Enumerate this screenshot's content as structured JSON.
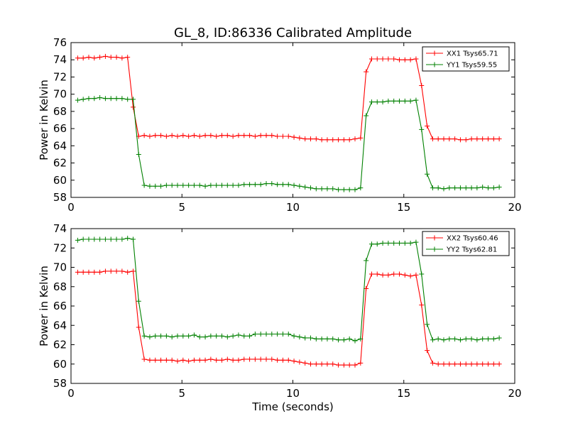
{
  "chart_data": [
    {
      "type": "line",
      "title": "GL_8, ID:86336 Calibrated Amplitude",
      "xlabel": "",
      "ylabel": "Power in Kelvin",
      "xlim": [
        0,
        20
      ],
      "ylim": [
        58,
        76
      ],
      "xticks": [
        0,
        5,
        10,
        15,
        20
      ],
      "yticks": [
        58,
        60,
        62,
        64,
        66,
        68,
        70,
        72,
        74,
        76
      ],
      "grid": false,
      "legend_position": "top-right",
      "x": [
        0.3,
        0.55,
        0.8,
        1.05,
        1.3,
        1.55,
        1.8,
        2.05,
        2.3,
        2.55,
        2.8,
        3.05,
        3.3,
        3.55,
        3.8,
        4.05,
        4.3,
        4.55,
        4.8,
        5.05,
        5.3,
        5.55,
        5.8,
        6.05,
        6.3,
        6.55,
        6.8,
        7.05,
        7.3,
        7.55,
        7.8,
        8.05,
        8.3,
        8.55,
        8.8,
        9.05,
        9.3,
        9.55,
        9.8,
        10.05,
        10.3,
        10.55,
        10.8,
        11.05,
        11.3,
        11.55,
        11.8,
        12.05,
        12.3,
        12.55,
        12.8,
        13.05,
        13.3,
        13.55,
        13.8,
        14.05,
        14.3,
        14.55,
        14.8,
        15.05,
        15.3,
        15.55,
        15.8,
        16.05,
        16.3,
        16.55,
        16.8,
        17.05,
        17.3,
        17.55,
        17.8,
        18.05,
        18.3,
        18.55,
        18.8,
        19.05,
        19.3
      ],
      "series": [
        {
          "name": "XX1 Tsys65.71",
          "color": "#ff0000",
          "values": [
            74.2,
            74.2,
            74.3,
            74.2,
            74.3,
            74.4,
            74.3,
            74.3,
            74.2,
            74.3,
            68.5,
            65.1,
            65.2,
            65.1,
            65.2,
            65.2,
            65.1,
            65.2,
            65.1,
            65.2,
            65.1,
            65.2,
            65.1,
            65.2,
            65.2,
            65.1,
            65.2,
            65.2,
            65.1,
            65.2,
            65.2,
            65.2,
            65.1,
            65.2,
            65.2,
            65.2,
            65.1,
            65.1,
            65.1,
            65.0,
            64.9,
            64.8,
            64.8,
            64.8,
            64.7,
            64.7,
            64.7,
            64.7,
            64.7,
            64.7,
            64.8,
            64.9,
            72.6,
            74.1,
            74.1,
            74.1,
            74.1,
            74.1,
            74.0,
            74.0,
            74.0,
            74.1,
            71.0,
            66.3,
            64.8,
            64.8,
            64.8,
            64.8,
            64.8,
            64.7,
            64.7,
            64.8,
            64.8,
            64.8,
            64.8,
            64.8,
            64.8
          ]
        },
        {
          "name": "YY1 Tsys59.55",
          "color": "#008000",
          "values": [
            69.3,
            69.4,
            69.5,
            69.5,
            69.6,
            69.5,
            69.5,
            69.5,
            69.5,
            69.4,
            69.4,
            63.0,
            59.4,
            59.3,
            59.3,
            59.3,
            59.4,
            59.4,
            59.4,
            59.4,
            59.4,
            59.4,
            59.4,
            59.3,
            59.4,
            59.4,
            59.4,
            59.4,
            59.4,
            59.4,
            59.5,
            59.5,
            59.5,
            59.5,
            59.6,
            59.6,
            59.5,
            59.5,
            59.5,
            59.4,
            59.3,
            59.2,
            59.1,
            59.0,
            59.0,
            59.0,
            59.0,
            58.9,
            58.9,
            58.9,
            58.9,
            59.1,
            67.5,
            69.1,
            69.1,
            69.1,
            69.2,
            69.2,
            69.2,
            69.2,
            69.2,
            69.3,
            65.9,
            60.7,
            59.1,
            59.1,
            59.0,
            59.1,
            59.1,
            59.1,
            59.1,
            59.1,
            59.1,
            59.2,
            59.1,
            59.1,
            59.2
          ]
        }
      ]
    },
    {
      "type": "line",
      "title": "",
      "xlabel": "Time (seconds)",
      "ylabel": "Power in Kelvin",
      "xlim": [
        0,
        20
      ],
      "ylim": [
        58,
        74
      ],
      "xticks": [
        0,
        5,
        10,
        15,
        20
      ],
      "yticks": [
        58,
        60,
        62,
        64,
        66,
        68,
        70,
        72,
        74
      ],
      "grid": false,
      "legend_position": "top-right",
      "x": [
        0.3,
        0.55,
        0.8,
        1.05,
        1.3,
        1.55,
        1.8,
        2.05,
        2.3,
        2.55,
        2.8,
        3.05,
        3.3,
        3.55,
        3.8,
        4.05,
        4.3,
        4.55,
        4.8,
        5.05,
        5.3,
        5.55,
        5.8,
        6.05,
        6.3,
        6.55,
        6.8,
        7.05,
        7.3,
        7.55,
        7.8,
        8.05,
        8.3,
        8.55,
        8.8,
        9.05,
        9.3,
        9.55,
        9.8,
        10.05,
        10.3,
        10.55,
        10.8,
        11.05,
        11.3,
        11.55,
        11.8,
        12.05,
        12.3,
        12.55,
        12.8,
        13.05,
        13.3,
        13.55,
        13.8,
        14.05,
        14.3,
        14.55,
        14.8,
        15.05,
        15.3,
        15.55,
        15.8,
        16.05,
        16.3,
        16.55,
        16.8,
        17.05,
        17.3,
        17.55,
        17.8,
        18.05,
        18.3,
        18.55,
        18.8,
        19.05,
        19.3
      ],
      "series": [
        {
          "name": "XX2 Tsys60.46",
          "color": "#ff0000",
          "values": [
            69.5,
            69.5,
            69.5,
            69.5,
            69.5,
            69.6,
            69.6,
            69.6,
            69.6,
            69.5,
            69.6,
            63.8,
            60.5,
            60.4,
            60.4,
            60.4,
            60.4,
            60.4,
            60.3,
            60.4,
            60.3,
            60.4,
            60.4,
            60.4,
            60.5,
            60.4,
            60.4,
            60.5,
            60.4,
            60.4,
            60.5,
            60.5,
            60.5,
            60.5,
            60.5,
            60.5,
            60.4,
            60.4,
            60.4,
            60.3,
            60.2,
            60.1,
            60.0,
            60.0,
            60.0,
            60.0,
            60.0,
            59.9,
            59.9,
            59.9,
            59.9,
            60.1,
            67.8,
            69.3,
            69.3,
            69.2,
            69.2,
            69.3,
            69.3,
            69.2,
            69.1,
            69.2,
            66.1,
            61.4,
            60.1,
            60.0,
            60.0,
            60.0,
            60.0,
            60.0,
            60.0,
            60.0,
            60.0,
            60.0,
            60.0,
            60.0,
            60.0
          ]
        },
        {
          "name": "YY2 Tsys62.81",
          "color": "#008000",
          "values": [
            72.8,
            72.9,
            72.9,
            72.9,
            72.9,
            72.9,
            72.9,
            72.9,
            72.9,
            73.0,
            72.9,
            66.5,
            62.9,
            62.8,
            62.9,
            62.9,
            62.9,
            62.8,
            62.9,
            62.9,
            62.9,
            63.0,
            62.8,
            62.8,
            62.9,
            62.9,
            62.9,
            62.8,
            62.9,
            63.0,
            62.9,
            62.9,
            63.1,
            63.1,
            63.1,
            63.1,
            63.1,
            63.1,
            63.1,
            62.9,
            62.8,
            62.7,
            62.7,
            62.6,
            62.6,
            62.6,
            62.6,
            62.5,
            62.5,
            62.6,
            62.4,
            62.6,
            70.7,
            72.4,
            72.4,
            72.5,
            72.5,
            72.5,
            72.5,
            72.5,
            72.5,
            72.6,
            69.3,
            64.1,
            62.5,
            62.6,
            62.5,
            62.6,
            62.6,
            62.5,
            62.6,
            62.6,
            62.5,
            62.6,
            62.6,
            62.6,
            62.7
          ]
        }
      ]
    }
  ]
}
